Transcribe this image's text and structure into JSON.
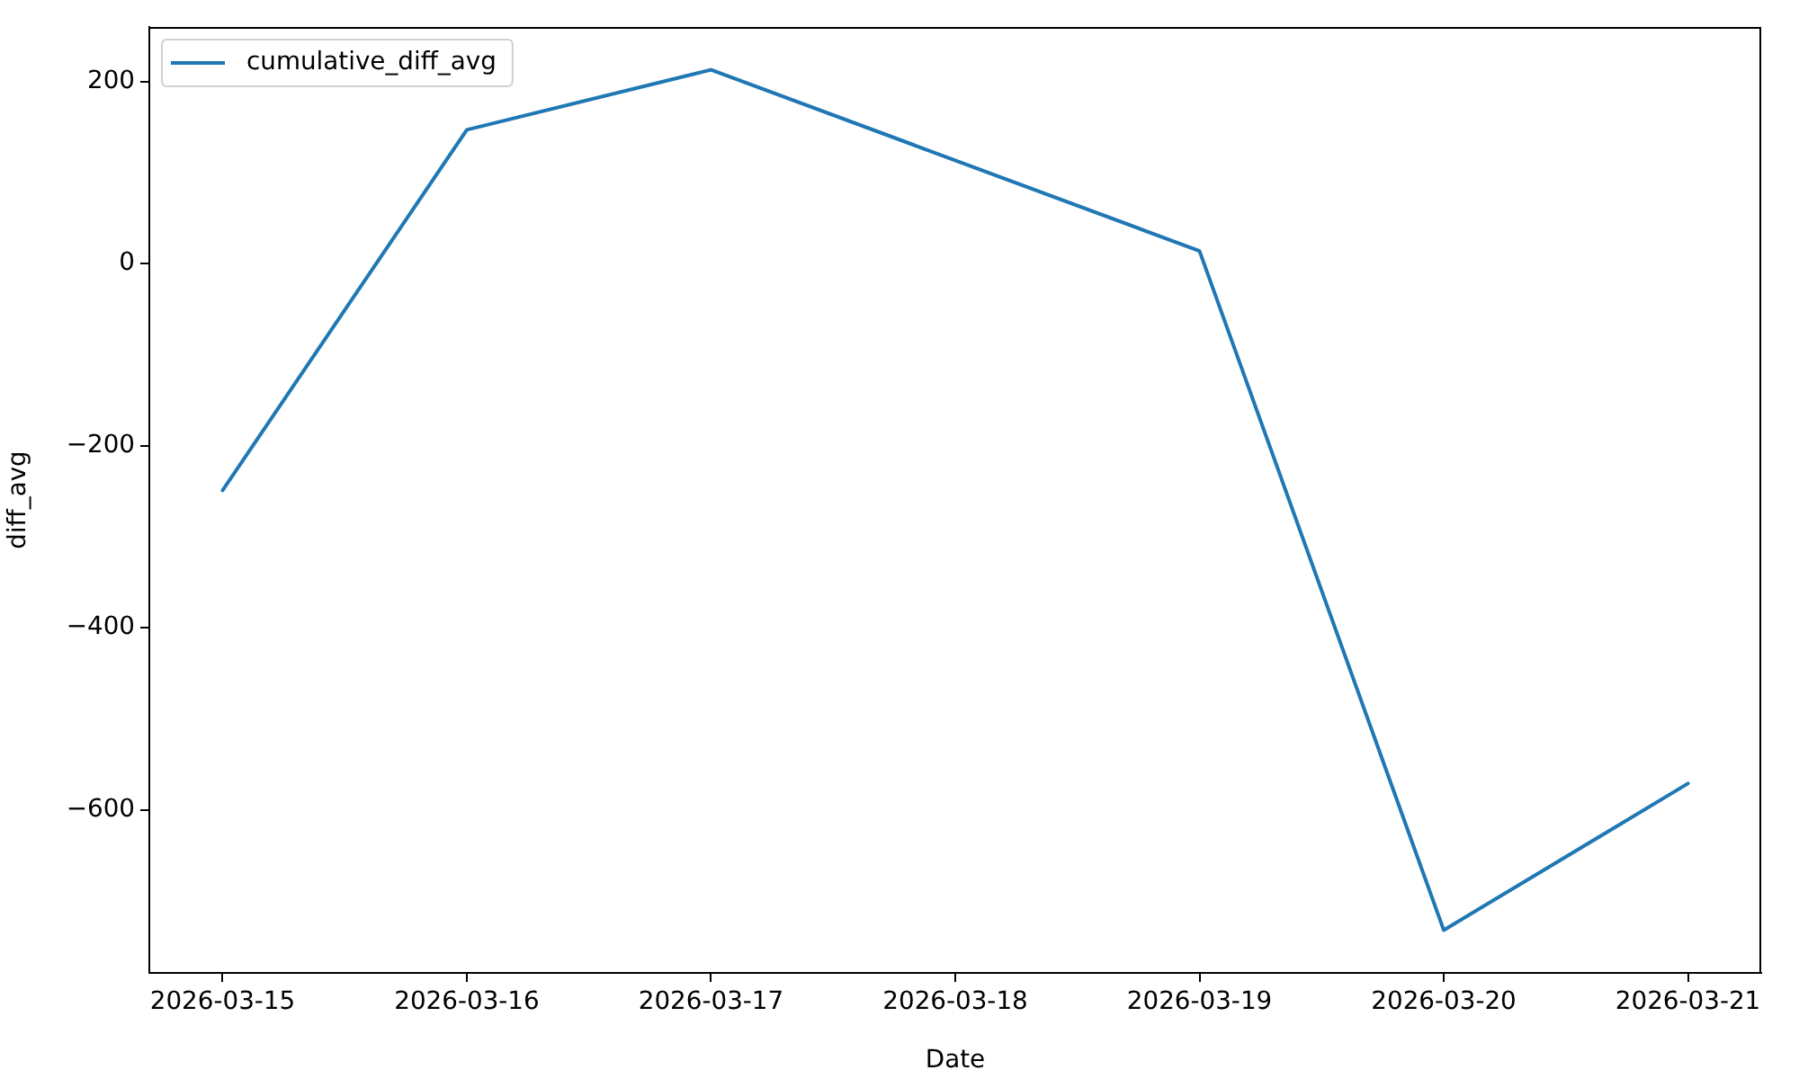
{
  "chart_data": {
    "type": "line",
    "x": [
      "2026-03-15",
      "2026-03-16",
      "2026-03-17",
      "2026-03-19",
      "2026-03-20",
      "2026-03-21"
    ],
    "series": [
      {
        "name": "cumulative_diff_avg",
        "color": "#1f77b4",
        "values": [
          -249,
          147,
          213,
          14,
          -732,
          -571
        ]
      }
    ],
    "xlabel": "Date",
    "ylabel": "diff_avg",
    "xlim": [
      "2026-03-14T16:48",
      "2026-03-21T07:12"
    ],
    "xticks": [
      "2026-03-15",
      "2026-03-16",
      "2026-03-17",
      "2026-03-18",
      "2026-03-19",
      "2026-03-20",
      "2026-03-21"
    ],
    "ylim": [
      -779,
      260
    ],
    "yticks": [
      -600,
      -400,
      -200,
      0,
      200
    ],
    "legend": "top left",
    "marker": "none",
    "line_style": "solid"
  }
}
